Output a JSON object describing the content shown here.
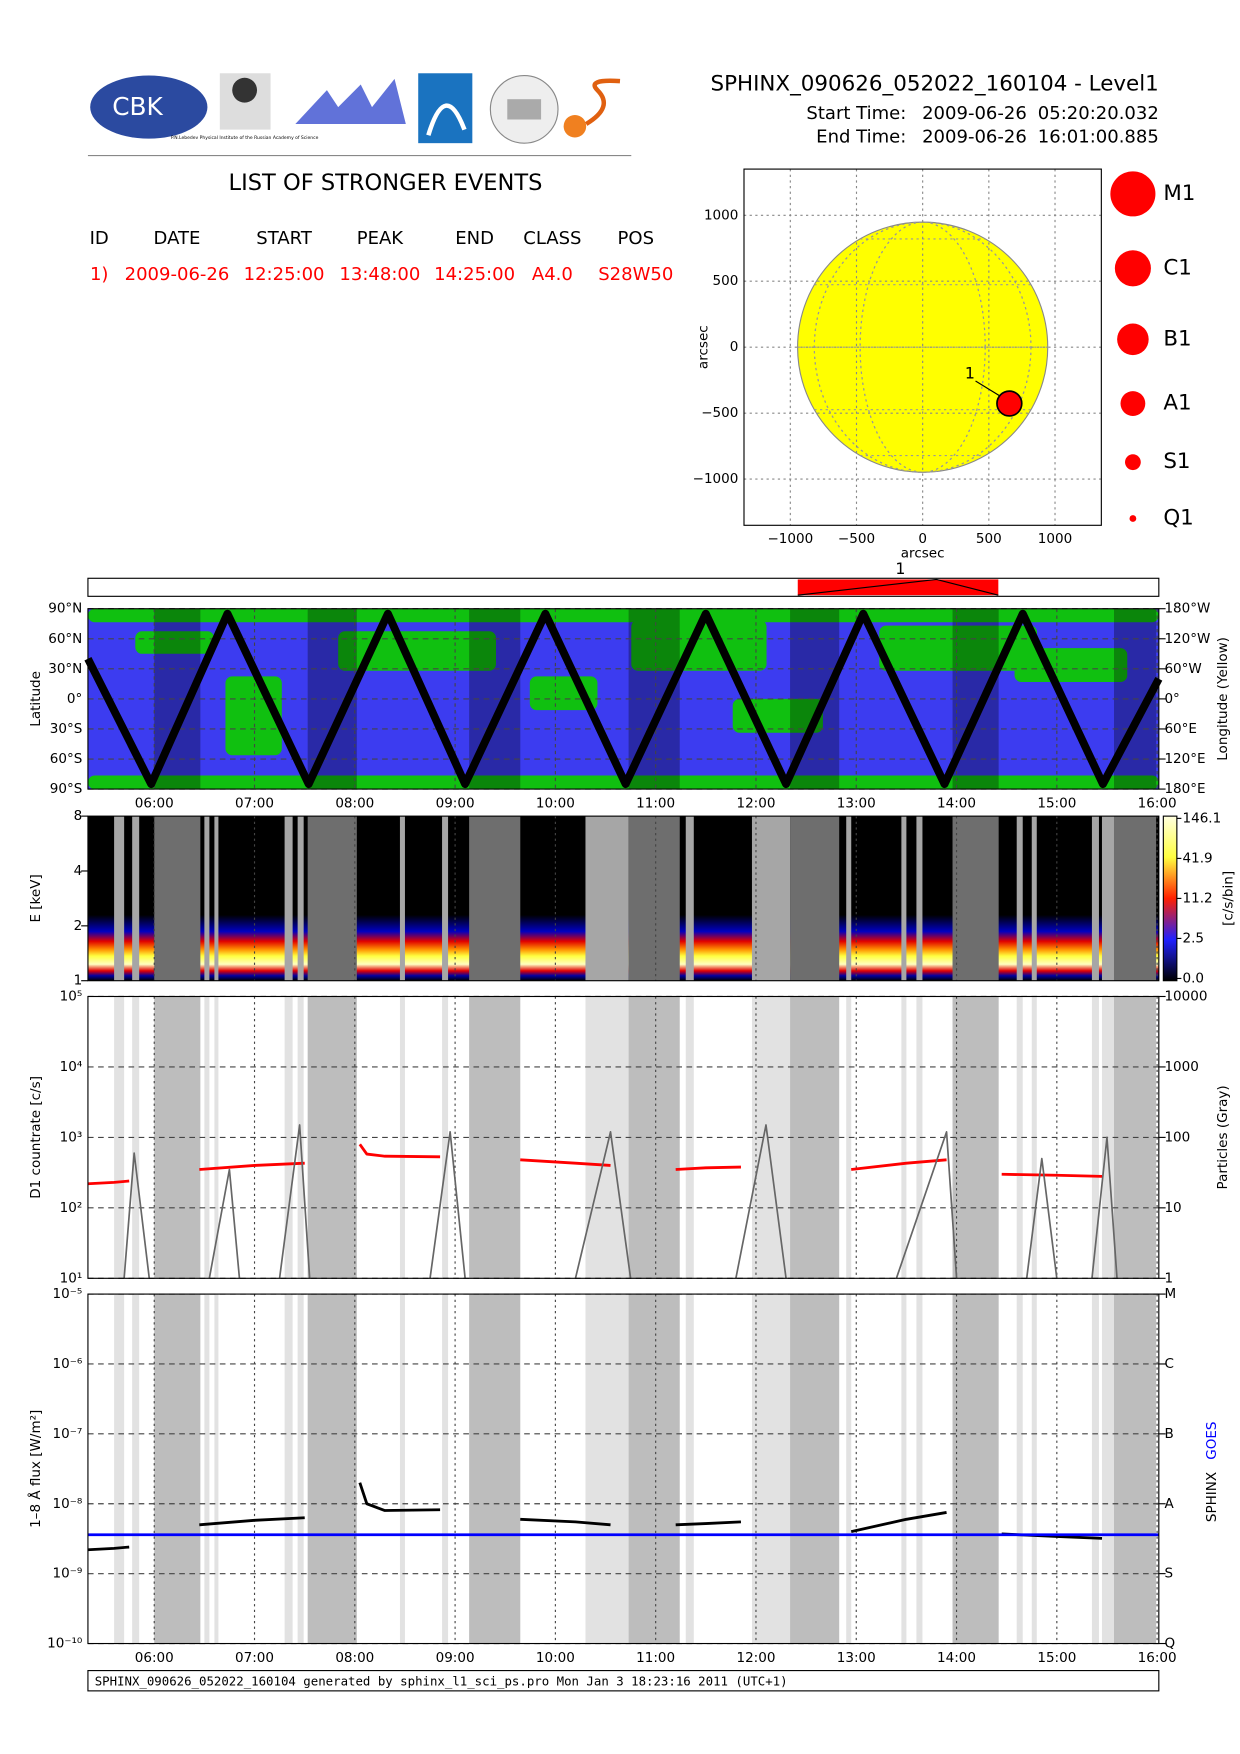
{
  "header": {
    "title": "SPHINX_090626_052022_160104 - Level1",
    "start_label": "Start Time:",
    "start_date": "2009-06-26",
    "start_time": "05:20:20.032",
    "end_label": "End Time:",
    "end_date": "2009-06-26",
    "end_time": "16:01:00.885",
    "logo_text": "CBK",
    "logo_caption": "P.N.Lebedev Physical Institute of the Russian Academy of Science"
  },
  "events": {
    "title": "LIST OF STRONGER EVENTS",
    "columns": [
      "ID",
      "DATE",
      "START",
      "PEAK",
      "END",
      "CLASS",
      "POS"
    ],
    "rows": [
      [
        "1)",
        "2009-06-26",
        "12:25:00",
        "13:48:00",
        "14:25:00",
        "A4.0",
        "S28W50"
      ]
    ]
  },
  "footer": "SPHINX_090626_052022_160104 generated by sphinx_l1_sci_ps.pro Mon Jan  3 18:23:16 2011 (UTC+1)",
  "chart_data": [
    {
      "type": "scatter",
      "xlabel": "arcsec",
      "ylabel": "arcsec",
      "xlim": [
        -1350,
        1350
      ],
      "ylim": [
        -1350,
        1350
      ],
      "xticks": [
        {
          "value": -1000,
          "label": "−1000"
        },
        {
          "value": -500,
          "label": "−500"
        },
        0,
        500,
        1000
      ],
      "yticks": [
        {
          "value": -1000,
          "label": "−1000"
        },
        {
          "value": -500,
          "label": "−500"
        },
        0,
        500,
        1000
      ],
      "sun_radius": 945,
      "color": "#ff0000",
      "x": [
        655
      ],
      "values": [
        -427
      ],
      "labels": [
        "1"
      ],
      "size_legend": [
        "M1",
        "C1",
        "B1",
        "A1",
        "S1",
        "Q1"
      ]
    },
    {
      "type": "line",
      "ylabel": "Latitude",
      "y2label": "Longitude (Yellow)",
      "xlim": [
        5.339,
        16.017
      ],
      "xticks": [
        {
          "value": 6,
          "label": "06:00"
        },
        {
          "value": 7,
          "label": "07:00"
        },
        {
          "value": 8,
          "label": "08:00"
        },
        {
          "value": 9,
          "label": "09:00"
        },
        {
          "value": 10,
          "label": "10:00"
        },
        {
          "value": 11,
          "label": "11:00"
        },
        {
          "value": 12,
          "label": "12:00"
        },
        {
          "value": 13,
          "label": "13:00"
        },
        {
          "value": 14,
          "label": "14:00"
        },
        {
          "value": 15,
          "label": "15:00"
        },
        {
          "value": 16,
          "label": "16:00"
        }
      ],
      "ylim": [
        -90,
        90
      ],
      "yticks": [
        {
          "value": -90,
          "label": "90°S"
        },
        {
          "value": -60,
          "label": "60°S"
        },
        {
          "value": -30,
          "label": "30°S"
        },
        {
          "value": 0,
          "label": "0°"
        },
        {
          "value": 30,
          "label": "30°N"
        },
        {
          "value": 60,
          "label": "60°N"
        },
        {
          "value": 90,
          "label": "90°N"
        }
      ],
      "y2lim": [
        180,
        -180
      ],
      "y2ticks": [
        {
          "value": -180,
          "label": "180°W"
        },
        {
          "value": -120,
          "label": "120°W"
        },
        {
          "value": -60,
          "label": "60°W"
        },
        {
          "value": 0,
          "label": "0°"
        },
        {
          "value": 60,
          "label": "60°E"
        },
        {
          "value": 120,
          "label": "120°E"
        },
        {
          "value": 180,
          "label": "180°E"
        }
      ],
      "series": [
        {
          "color": "#000000",
          "x": [
            5.339,
            5.97,
            6.73,
            7.54,
            8.33,
            9.1,
            9.9,
            10.7,
            11.5,
            12.3,
            13.07,
            13.88,
            14.66,
            15.46,
            16.017
          ],
          "values": [
            40,
            -85,
            85,
            -85,
            85,
            -85,
            85,
            -85,
            85,
            -85,
            85,
            -85,
            85,
            -85,
            20
          ]
        }
      ]
    },
    {
      "type": "heatmap",
      "ylabel": "E [keV]",
      "log": true,
      "xlim": [
        5.339,
        16.017
      ],
      "ylim": [
        1,
        8
      ],
      "yticks": [
        1,
        2,
        4,
        8
      ],
      "colorbar_label": "[c/s/bin]",
      "colorbar_ticks": [
        146.1,
        41.9,
        11.2,
        2.5,
        {
          "value": 0,
          "label": "0.0"
        }
      ]
    },
    {
      "type": "line",
      "log": true,
      "ylabel": "D1 countrate [c/s]",
      "y2label": "Particles (Gray)",
      "xlim": [
        5.339,
        16.017
      ],
      "ylim": [
        10,
        100000
      ],
      "yticks": [
        {
          "value": 10,
          "label": "10¹"
        },
        {
          "value": 100,
          "label": "10²"
        },
        {
          "value": 1000,
          "label": "10³"
        },
        {
          "value": 10000,
          "label": "10⁴"
        },
        {
          "value": 100000,
          "label": "10⁵"
        }
      ],
      "y2lim": [
        1,
        10000
      ],
      "y2ticks": [
        1,
        10,
        100,
        1000,
        10000
      ],
      "series": [
        {
          "color": "#ff0000",
          "x": [
            5.34,
            5.6,
            5.75,
            6.1,
            6.45,
            7.0,
            7.5,
            7.8,
            8.05,
            8.12,
            8.3,
            8.85,
            9.3,
            9.65,
            10.2,
            10.55,
            11.0,
            11.2,
            11.5,
            11.85,
            12.6,
            12.95,
            13.5,
            13.9,
            14.2,
            14.45,
            15.0,
            15.45
          ],
          "values": [
            220,
            230,
            240,
            null,
            350,
            400,
            430,
            null,
            800,
            580,
            540,
            530,
            null,
            480,
            430,
            400,
            null,
            350,
            370,
            380,
            null,
            350,
            430,
            480,
            null,
            300,
            290,
            280
          ]
        },
        {
          "color": "#666666",
          "axis": "y2",
          "x": [
            5.7,
            5.8,
            5.95,
            6.0,
            6.55,
            6.75,
            6.85,
            6.9,
            7.25,
            7.45,
            7.55,
            7.6,
            8.75,
            8.95,
            9.1,
            9.12,
            10.2,
            10.55,
            10.75,
            10.8,
            11.8,
            12.1,
            12.3,
            12.32,
            13.4,
            13.9,
            14.0,
            14.05,
            14.7,
            14.85,
            15.0,
            15.05,
            15.35,
            15.5,
            15.6
          ],
          "values": [
            1,
            60,
            1,
            null,
            1,
            35,
            1,
            null,
            1,
            150,
            1,
            null,
            1,
            120,
            1,
            null,
            1,
            120,
            1,
            null,
            1,
            150,
            1,
            null,
            1,
            120,
            1,
            null,
            1,
            50,
            1,
            null,
            1,
            100,
            1
          ]
        }
      ]
    },
    {
      "type": "line",
      "log": true,
      "ylabel": "1–8 Å flux [W/m²]",
      "xlim": [
        5.339,
        16.017
      ],
      "xticks": [
        {
          "value": 6,
          "label": "06:00"
        },
        {
          "value": 7,
          "label": "07:00"
        },
        {
          "value": 8,
          "label": "08:00"
        },
        {
          "value": 9,
          "label": "09:00"
        },
        {
          "value": 10,
          "label": "10:00"
        },
        {
          "value": 11,
          "label": "11:00"
        },
        {
          "value": 12,
          "label": "12:00"
        },
        {
          "value": 13,
          "label": "13:00"
        },
        {
          "value": 14,
          "label": "14:00"
        },
        {
          "value": 15,
          "label": "15:00"
        },
        {
          "value": 16,
          "label": "16:00"
        }
      ],
      "ylim": [
        1e-10,
        1e-05
      ],
      "yticks": [
        {
          "value": 1e-10,
          "label": "10⁻¹⁰"
        },
        {
          "value": 1e-09,
          "label": "10⁻⁹"
        },
        {
          "value": 1e-08,
          "label": "10⁻⁸"
        },
        {
          "value": 1e-07,
          "label": "10⁻⁷"
        },
        {
          "value": 1e-06,
          "label": "10⁻⁶"
        },
        {
          "value": 1e-05,
          "label": "10⁻⁵"
        }
      ],
      "y2ticks": [
        {
          "value": 1e-10,
          "label": "Q"
        },
        {
          "value": 1e-09,
          "label": "S"
        },
        {
          "value": 1e-08,
          "label": "A"
        },
        {
          "value": 1e-07,
          "label": "B"
        },
        {
          "value": 1e-06,
          "label": "C"
        },
        {
          "value": 1e-05,
          "label": "M"
        }
      ],
      "series": [
        {
          "name": "SPHINX",
          "color": "#000000",
          "x": [
            5.34,
            5.6,
            5.75,
            6.1,
            6.45,
            7.0,
            7.5,
            7.8,
            8.05,
            8.12,
            8.3,
            8.85,
            9.3,
            9.65,
            10.2,
            10.55,
            11.0,
            11.2,
            11.5,
            11.85,
            12.6,
            12.95,
            13.5,
            13.9,
            14.2,
            14.45,
            15.0,
            15.45
          ],
          "values": [
            2.2e-09,
            2.3e-09,
            2.4e-09,
            null,
            5e-09,
            5.8e-09,
            6.3e-09,
            null,
            2e-08,
            1e-08,
            8e-09,
            8.2e-09,
            null,
            6e-09,
            5.5e-09,
            5e-09,
            null,
            5e-09,
            5.2e-09,
            5.5e-09,
            null,
            4e-09,
            6e-09,
            7.5e-09,
            null,
            3.7e-09,
            3.4e-09,
            3.2e-09
          ]
        },
        {
          "name": "GOES",
          "color": "#0000ff",
          "x": [
            5.339,
            16.017
          ],
          "values": [
            3.6e-09,
            3.6e-09
          ]
        }
      ],
      "night_bands": [
        [
          6.0,
          6.46
        ],
        [
          7.53,
          8.02
        ],
        [
          9.14,
          9.65
        ],
        [
          10.73,
          11.24
        ],
        [
          12.34,
          12.83
        ],
        [
          13.96,
          14.42
        ],
        [
          15.57,
          15.99
        ]
      ],
      "light_bands": [
        [
          5.6,
          5.7
        ],
        [
          5.78,
          5.85
        ],
        [
          6.5,
          6.55
        ],
        [
          6.6,
          6.64
        ],
        [
          7.3,
          7.38
        ],
        [
          7.43,
          7.49
        ],
        [
          8.45,
          8.5
        ],
        [
          8.87,
          8.93
        ],
        [
          10.3,
          10.73
        ],
        [
          11.3,
          11.38
        ],
        [
          11.96,
          12.34
        ],
        [
          12.9,
          12.95
        ],
        [
          13.45,
          13.5
        ],
        [
          13.6,
          13.66
        ],
        [
          14.6,
          14.66
        ],
        [
          14.75,
          14.8
        ],
        [
          15.35,
          15.42
        ],
        [
          15.45,
          15.57
        ]
      ]
    }
  ]
}
